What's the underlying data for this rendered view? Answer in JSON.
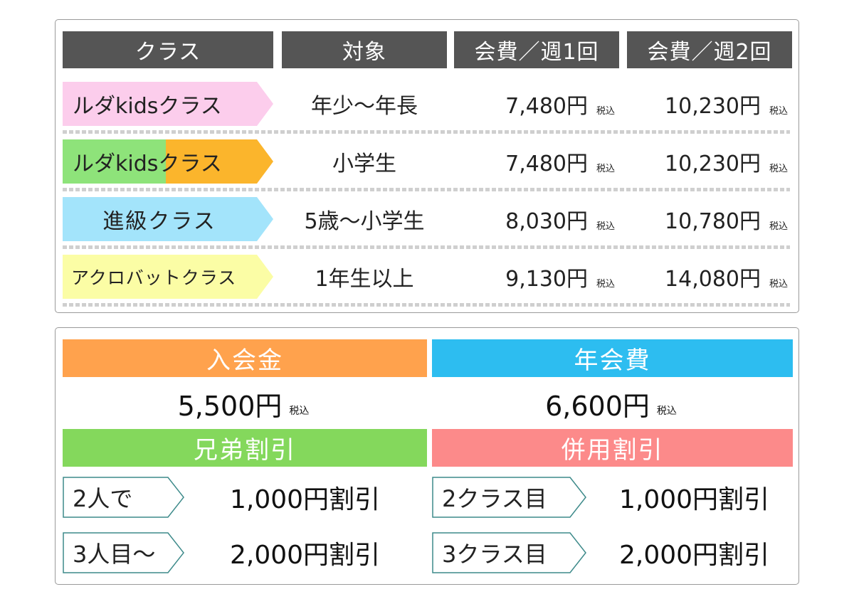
{
  "price_table": {
    "headers": [
      "クラス",
      "対象",
      "会費／週1回",
      "会費／週2回"
    ],
    "tax_label": "税込",
    "rows": [
      {
        "class": "ルダkidsクラス",
        "target": "年少〜年長",
        "weekly1": "7,480円",
        "weekly2": "10,230円",
        "color": "#fccdec"
      },
      {
        "class": "ルダkidsクラス",
        "target": "小学生",
        "weekly1": "7,480円",
        "weekly2": "10,230円",
        "color": "#8ee37a",
        "color2": "#fbb52c"
      },
      {
        "class": "進級クラス",
        "target": "5歳〜小学生",
        "weekly1": "8,030円",
        "weekly2": "10,780円",
        "color": "#a3e4fb"
      },
      {
        "class": "アクロバットクラス",
        "target": "1年生以上",
        "weekly1": "9,130円",
        "weekly2": "14,080円",
        "color": "#fbfda5"
      }
    ]
  },
  "fees": {
    "enrollment": {
      "label": "入会金",
      "amount": "5,500円",
      "tax": "税込",
      "color": "#ffa24d"
    },
    "annual": {
      "label": "年会費",
      "amount": "6,600円",
      "tax": "税込",
      "color": "#2dbdf0"
    }
  },
  "discounts": {
    "sibling": {
      "label": "兄弟割引",
      "color": "#84d85c",
      "items": [
        {
          "who": "2人で",
          "amount": "1,000円割引"
        },
        {
          "who": "3人目〜",
          "amount": "2,000円割引"
        }
      ]
    },
    "combined": {
      "label": "併用割引",
      "color": "#fc8a8a",
      "items": [
        {
          "who": "2クラス目",
          "amount": "1,000円割引"
        },
        {
          "who": "3クラス目",
          "amount": "2,000円割引"
        }
      ]
    },
    "tag_border_color": "#3d8a8a"
  }
}
